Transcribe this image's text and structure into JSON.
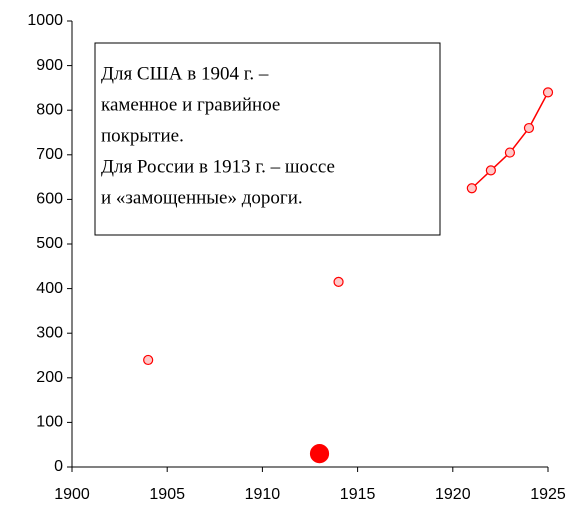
{
  "chart_data": {
    "type": "scatter",
    "annotation": [
      "Для США в 1904 г. –",
      "каменное и гравийное",
      "покрытие.",
      "Для России в 1913 г. – шоссе",
      "и «замощенные» дороги."
    ],
    "series": [
      {
        "color": "#ff0000",
        "fill": "#ffc8c8",
        "marker_size": 4.5,
        "line": false,
        "x": [
          1904,
          1914
        ],
        "values": [
          240,
          415
        ]
      },
      {
        "color": "#ff0000",
        "fill": "#ffc8c8",
        "marker_size": 4.5,
        "line": true,
        "x": [
          1921,
          1922,
          1923,
          1924,
          1925
        ],
        "values": [
          625,
          665,
          705,
          760,
          840
        ]
      },
      {
        "color": "#ff0000",
        "fill": "#ff0000",
        "marker_size": 9,
        "line": false,
        "x": [
          1913
        ],
        "values": [
          30
        ]
      }
    ],
    "xlim": [
      1900,
      1925
    ],
    "xticks": [
      1900,
      1905,
      1910,
      1915,
      1920,
      1925
    ],
    "ylim": [
      0,
      1000
    ],
    "yticks": [
      0,
      100,
      200,
      300,
      400,
      500,
      600,
      700,
      800,
      900,
      1000
    ],
    "grid": false
  }
}
